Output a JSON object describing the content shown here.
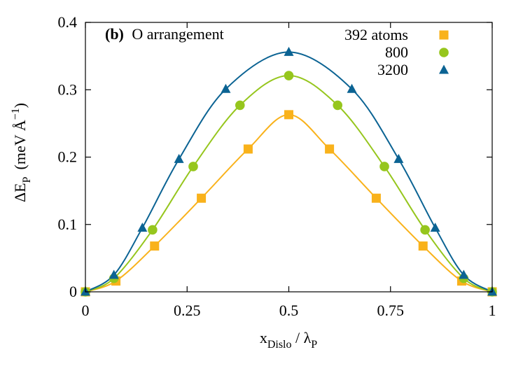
{
  "chart_data": {
    "type": "line",
    "panel_label": "(b)",
    "title": "O arrangement",
    "xlabel": {
      "main": "x",
      "sub": "Dislo",
      "sep": " / ",
      "sym": "λ",
      "sym_sub": "P"
    },
    "ylabel": {
      "main": "ΔE",
      "sub": "P",
      "unit_open": "(meV Å",
      "unit_sup": "−1",
      "unit_close": ")"
    },
    "xlim": [
      0,
      1
    ],
    "ylim": [
      0,
      0.4
    ],
    "x_ticks": [
      {
        "value": 0,
        "label": "0"
      },
      {
        "value": 0.25,
        "label": "0.25"
      },
      {
        "value": 0.5,
        "label": "0.5"
      },
      {
        "value": 0.75,
        "label": "0.75"
      },
      {
        "value": 1,
        "label": "1"
      }
    ],
    "y_ticks": [
      {
        "value": 0,
        "label": "0"
      },
      {
        "value": 0.1,
        "label": "0.1"
      },
      {
        "value": 0.2,
        "label": "0.2"
      },
      {
        "value": 0.3,
        "label": "0.3"
      },
      {
        "value": 0.4,
        "label": "0.4"
      }
    ],
    "legend_position": "top-right",
    "series": [
      {
        "name": "392 atoms",
        "color": "#f9b21b",
        "marker": "square",
        "x": [
          0,
          0.075,
          0.17,
          0.285,
          0.4,
          0.5,
          0.6,
          0.715,
          0.83,
          0.925,
          1
        ],
        "y": [
          0,
          0.016,
          0.068,
          0.139,
          0.212,
          0.263,
          0.212,
          0.139,
          0.068,
          0.016,
          0
        ]
      },
      {
        "name": "800",
        "color": "#96c61d",
        "marker": "circle",
        "x": [
          0,
          0.07,
          0.165,
          0.265,
          0.38,
          0.5,
          0.62,
          0.735,
          0.835,
          0.93,
          1
        ],
        "y": [
          0,
          0.02,
          0.092,
          0.186,
          0.277,
          0.321,
          0.277,
          0.186,
          0.092,
          0.02,
          0
        ]
      },
      {
        "name": "3200",
        "color": "#0b6393",
        "marker": "triangle",
        "x": [
          0,
          0.07,
          0.14,
          0.23,
          0.345,
          0.5,
          0.655,
          0.77,
          0.86,
          0.93,
          1
        ],
        "y": [
          0,
          0.025,
          0.095,
          0.197,
          0.301,
          0.356,
          0.301,
          0.197,
          0.095,
          0.025,
          0
        ]
      }
    ]
  }
}
